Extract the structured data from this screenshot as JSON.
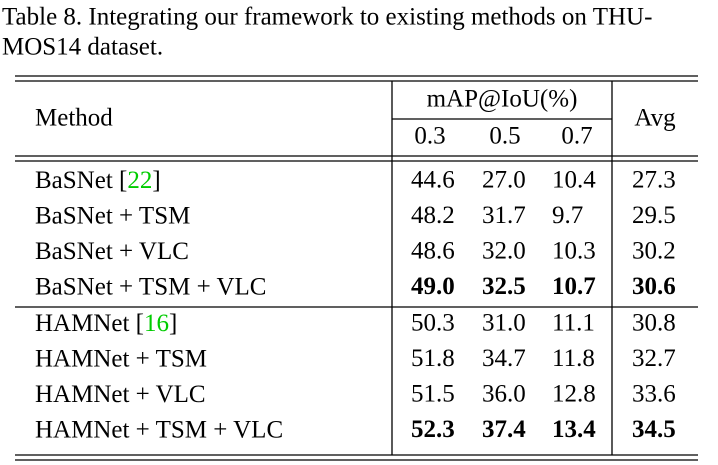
{
  "caption": {
    "lines": [
      "Table 8. Integrating our framework to existing methods on THU-",
      "MOS14 dataset."
    ]
  },
  "table": {
    "header": {
      "method": "Method",
      "group": "mAP@IoU(%)",
      "subcolumns": [
        "0.3",
        "0.5",
        "0.7"
      ],
      "avg": "Avg"
    },
    "groups": [
      {
        "rows": [
          {
            "method": {
              "text": "BaSNet [",
              "ref": "22",
              "close": "]"
            },
            "values": [
              "44.6",
              "27.0",
              "10.4"
            ],
            "avg": "27.3",
            "bold": false
          },
          {
            "method": {
              "text": "BaSNet + TSM"
            },
            "values": [
              "48.2",
              "31.7",
              "9.7"
            ],
            "avg": "29.5",
            "bold": false
          },
          {
            "method": {
              "text": "BaSNet + VLC"
            },
            "values": [
              "48.6",
              "32.0",
              "10.3"
            ],
            "avg": "30.2",
            "bold": false
          },
          {
            "method": {
              "text": "BaSNet + TSM + VLC"
            },
            "values": [
              "49.0",
              "32.5",
              "10.7"
            ],
            "avg": "30.6",
            "bold": true
          }
        ]
      },
      {
        "rows": [
          {
            "method": {
              "text": "HAMNet [",
              "ref": "16",
              "close": "]"
            },
            "values": [
              "50.3",
              "31.0",
              "11.1"
            ],
            "avg": "30.8",
            "bold": false
          },
          {
            "method": {
              "text": "HAMNet + TSM"
            },
            "values": [
              "51.8",
              "34.7",
              "11.8"
            ],
            "avg": "32.7",
            "bold": false
          },
          {
            "method": {
              "text": "HAMNet + VLC"
            },
            "values": [
              "51.5",
              "36.0",
              "12.8"
            ],
            "avg": "33.6",
            "bold": false
          },
          {
            "method": {
              "text": "HAMNet + TSM + VLC"
            },
            "values": [
              "52.3",
              "37.4",
              "13.4"
            ],
            "avg": "34.5",
            "bold": true
          }
        ]
      }
    ]
  }
}
